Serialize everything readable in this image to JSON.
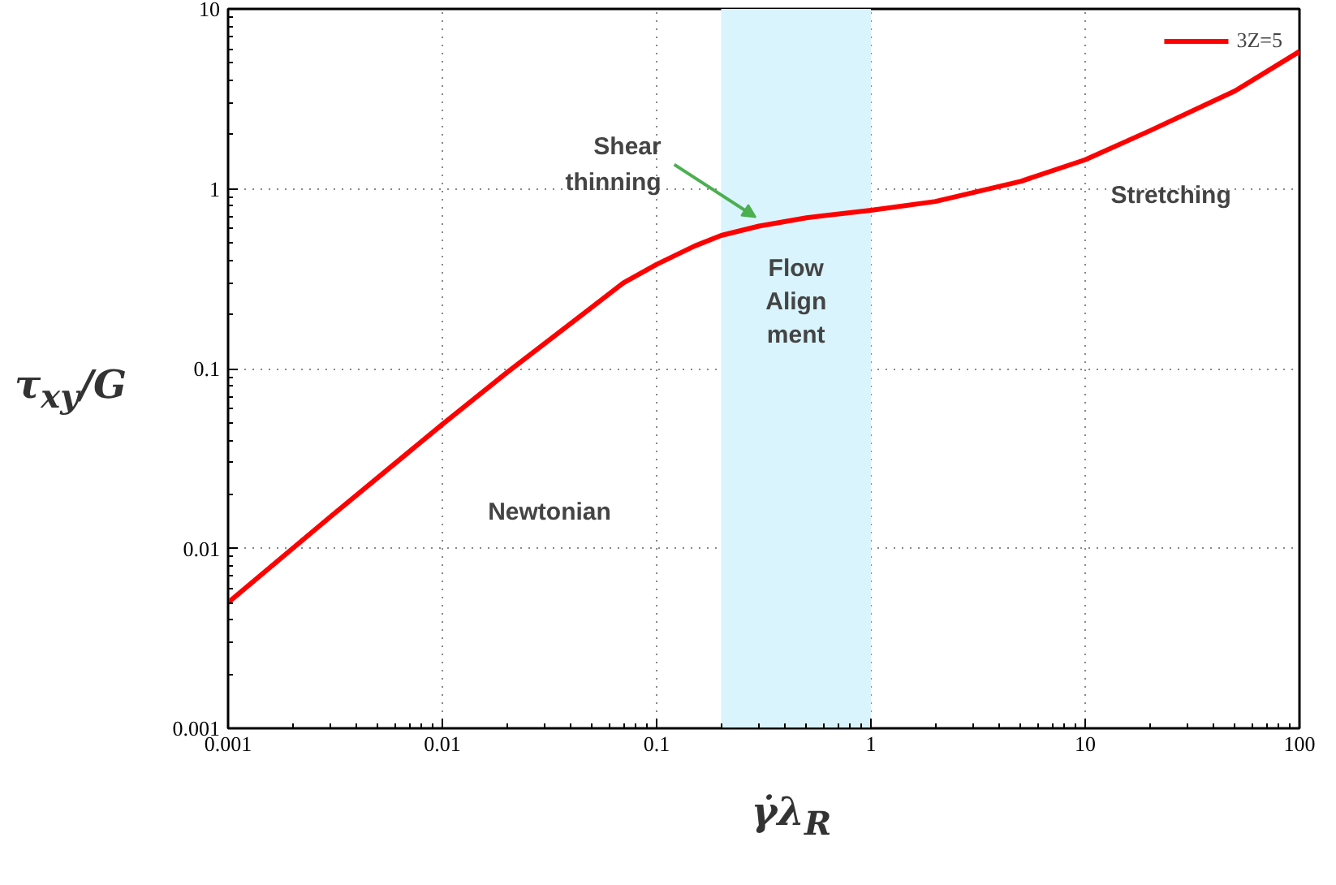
{
  "chart_data": {
    "type": "line",
    "xlabel": "γ̇λ$_{R}$",
    "ylabel": "τ$_{xy}$/G",
    "log": "xy",
    "grid": true,
    "legend": "top right",
    "line_style": "solid",
    "xlim": [
      0.001,
      100
    ],
    "ylim": [
      0.001,
      10
    ],
    "xticks": [
      0.001,
      0.01,
      0.1,
      1,
      10,
      100
    ],
    "yticks": [
      0.001,
      0.01,
      0.1,
      1,
      10
    ],
    "x": [
      0.001,
      0.003,
      0.01,
      0.02,
      0.05,
      0.07,
      0.1,
      0.15,
      0.2,
      0.3,
      0.5,
      1,
      2,
      5,
      10,
      20,
      50,
      100
    ],
    "series": [
      {
        "name": "3Z=5",
        "color": "#ff0000",
        "values": [
          0.005,
          0.015,
          0.049,
          0.095,
          0.22,
          0.3,
          0.38,
          0.48,
          0.55,
          0.62,
          0.69,
          0.76,
          0.85,
          1.1,
          1.45,
          2.1,
          3.5,
          5.8
        ]
      }
    ],
    "bands": [
      {
        "axis": "x",
        "from": 0.2,
        "to": 1,
        "label": "Flow\nAlign\nment",
        "color": "#d9f4fc"
      }
    ],
    "annotations": [
      {
        "text": "Shear\nthinning",
        "x": 0.29,
        "y": 0.62
      },
      "Newtonian",
      "Stretching"
    ]
  }
}
